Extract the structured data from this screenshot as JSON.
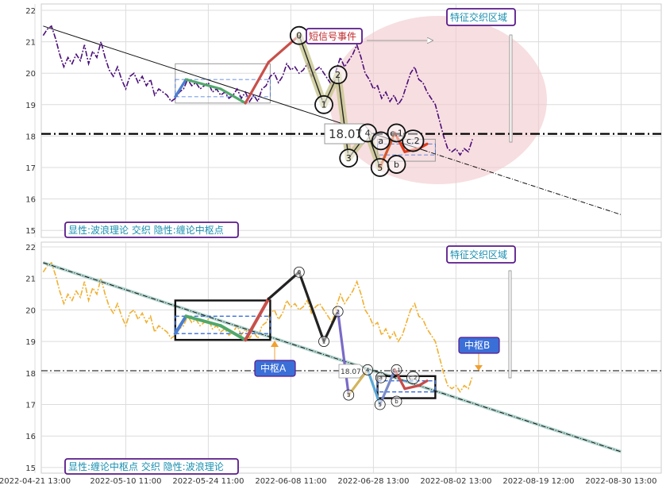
{
  "chart_data": [
    {
      "type": "line",
      "title": "",
      "xlabel": "",
      "ylabel": "",
      "ylim": [
        14.9,
        22.2
      ],
      "grid": true,
      "y_ticks": [
        "15",
        "16",
        "17",
        "18",
        "19",
        "20",
        "21",
        "22"
      ],
      "x_ticks": [
        "2022-04-21 13:00",
        "2022-05-10 11:00",
        "2022-05-24 11:00",
        "2022-06-08 11:00",
        "2022-06-28 13:00",
        "2022-08-02 13:00",
        "2022-08-19 12:00",
        "2022-08-30 13:00"
      ],
      "x_tick_index": [
        0,
        11,
        21,
        31,
        41,
        51,
        61,
        71
      ],
      "price_line": 18.07,
      "price_label": "18.07",
      "caption": "显性:波浪理论 交织 隐性:缠论中枢点",
      "region_label": "特征交织区域",
      "signal_label": "短信号事件",
      "price_series": {
        "x": [
          1,
          1.5,
          2,
          2.5,
          3,
          3.5,
          4,
          4.5,
          5,
          5.5,
          6,
          6.5,
          7,
          7.5,
          8,
          8.5,
          9,
          9.5,
          10,
          10.5,
          11,
          11.5,
          12,
          12.5,
          13,
          13.5,
          14,
          14.5,
          15,
          15.5,
          16,
          16.5,
          17,
          17.5,
          18,
          18.5,
          19,
          19.5,
          20,
          20.5,
          21,
          21.5,
          22,
          22.5,
          23,
          23.5,
          24,
          24.5,
          25,
          25.5,
          26,
          26.5,
          27,
          27.5,
          28,
          28.5,
          29,
          29.5,
          30,
          30.5,
          31,
          31.5,
          32,
          32.5,
          33,
          33.5,
          34,
          34.5,
          35,
          35.5,
          36,
          36.5,
          37,
          37.5,
          38,
          38.5,
          39,
          39.5,
          40,
          40.5,
          41,
          41.5,
          42,
          42.5,
          43,
          43.5,
          44,
          44.5,
          45,
          45.5,
          46,
          46.5,
          47,
          47.5,
          48,
          48.5,
          49,
          49.5,
          50,
          50.5,
          51,
          51.5,
          52,
          52.5,
          53
        ],
        "y": [
          21.2,
          21.4,
          21.5,
          21.1,
          20.6,
          20.2,
          20.5,
          20.3,
          20.6,
          20.4,
          20.9,
          20.3,
          20.7,
          20.5,
          21.0,
          20.5,
          20.1,
          19.9,
          20.2,
          19.8,
          19.5,
          19.9,
          20.0,
          19.7,
          19.9,
          19.6,
          19.8,
          19.3,
          19.5,
          19.4,
          19.3,
          19.1,
          19.2,
          19.4,
          19.5,
          19.8,
          19.6,
          19.7,
          19.5,
          19.6,
          19.7,
          19.4,
          19.5,
          19.3,
          19.4,
          19.2,
          19.3,
          19.5,
          19.2,
          19.4,
          19.1,
          19.3,
          19.1,
          19.5,
          19.6,
          19.9,
          20.0,
          19.7,
          19.9,
          20.3,
          20.1,
          20.2,
          20.0,
          20.1,
          20.3,
          19.9,
          20.1,
          20.2,
          20.0,
          19.8,
          19.6,
          20.1,
          20.5,
          20.2,
          20.4,
          20.6,
          20.9,
          20.5,
          20.0,
          19.8,
          19.5,
          19.6,
          19.2,
          19.4,
          19.1,
          19.3,
          19.0,
          19.2,
          19.6,
          20.0,
          20.2,
          19.8,
          19.7,
          19.4,
          19.2,
          19.0,
          18.5,
          18.0,
          17.6,
          17.5,
          17.6,
          17.4,
          17.6,
          17.5,
          17.9
        ]
      },
      "trend_line": {
        "x": [
          1,
          71
        ],
        "y": [
          21.5,
          15.5
        ]
      },
      "zigzag": {
        "x": [
          17,
          18.3,
          22.5,
          25.5,
          28.3,
          32,
          35,
          36.7,
          38,
          40.3,
          41.8,
          43.6,
          44.8,
          46.5,
          47.5
        ],
        "y": [
          19.25,
          19.8,
          19.5,
          19.05,
          20.35,
          21.2,
          19.0,
          19.95,
          17.3,
          18.1,
          17.0,
          18.1,
          17.5,
          17.6,
          17.75
        ]
      },
      "wave_labels": [
        "0",
        "1",
        "2",
        "3",
        "4",
        "5",
        "a",
        "b",
        "c.2",
        "c.1"
      ],
      "pivots": [
        {
          "x0": 17,
          "x1": 28.5,
          "y0": 19.05,
          "y1": 20.3,
          "inner_y0": 19.25,
          "inner_y1": 19.8
        },
        {
          "x0": 41.5,
          "x1": 48.5,
          "y0": 17.2,
          "y1": 17.9,
          "inner_y0": 17.4,
          "inner_y1": 17.75
        }
      ]
    },
    {
      "type": "line",
      "title": "",
      "xlabel": "",
      "ylabel": "",
      "ylim": [
        14.9,
        22.2
      ],
      "grid": true,
      "y_ticks": [
        "15",
        "16",
        "17",
        "18",
        "19",
        "20",
        "21",
        "22"
      ],
      "price_line": 18.07,
      "price_label": "18.07",
      "caption": "显性:缠论中枢点 交织 隐性:波浪理论",
      "region_label": "特征交织区域",
      "pivot_labels": [
        "中枢A",
        "中枢B"
      ],
      "wave_labels": [
        "0",
        "1",
        "2",
        "3",
        "4",
        "5",
        "a",
        "b",
        "c.2",
        "c.1"
      ]
    }
  ],
  "colors": {
    "price_top": "#4b0e7a",
    "price_bottom": "#f0b030",
    "callout_border": "#5a1a8a",
    "callout_text_blue": "#1a8fb0",
    "callout_text_red": "#c0282c",
    "pivot_box_blue": "#3a6fd8",
    "highlight": "#f2c8cc"
  }
}
